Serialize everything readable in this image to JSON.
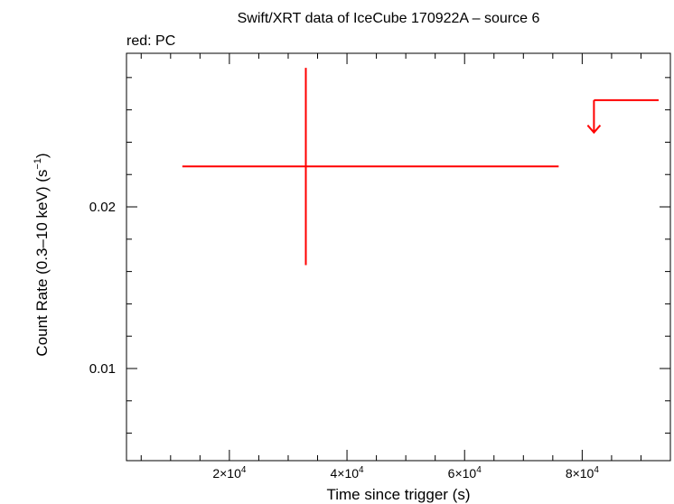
{
  "chart_data": {
    "type": "scatter",
    "title": "Swift/XRT data of IceCube 170922A – source 6",
    "subtitle": "red: PC",
    "xlabel": "Time since trigger (s)",
    "ylabel_main": "Count Rate (0.3–10 keV) (s",
    "ylabel_sup": "−1",
    "ylabel_close": ")",
    "xlim": [
      2500,
      95000
    ],
    "ylim": [
      0.0043,
      0.0295
    ],
    "x_ticks": [
      {
        "value": 20000,
        "mant": "2×10",
        "exp": "4"
      },
      {
        "value": 40000,
        "mant": "4×10",
        "exp": "4"
      },
      {
        "value": 60000,
        "mant": "6×10",
        "exp": "4"
      },
      {
        "value": 80000,
        "mant": "8×10",
        "exp": "4"
      }
    ],
    "y_ticks": [
      {
        "value": 0.01,
        "label": "0.01"
      },
      {
        "value": 0.02,
        "label": "0.02"
      }
    ],
    "series": [
      {
        "color": "#ff0000",
        "points": [
          {
            "x": 33000,
            "x_lo": 12000,
            "x_hi": 76000,
            "y": 0.0225,
            "y_lo": 0.0164,
            "y_hi": 0.0286
          }
        ],
        "upper_limits": [
          {
            "x": 82000,
            "x_hi": 93000,
            "y": 0.0266,
            "arrow_to": 0.0246
          }
        ]
      }
    ]
  }
}
